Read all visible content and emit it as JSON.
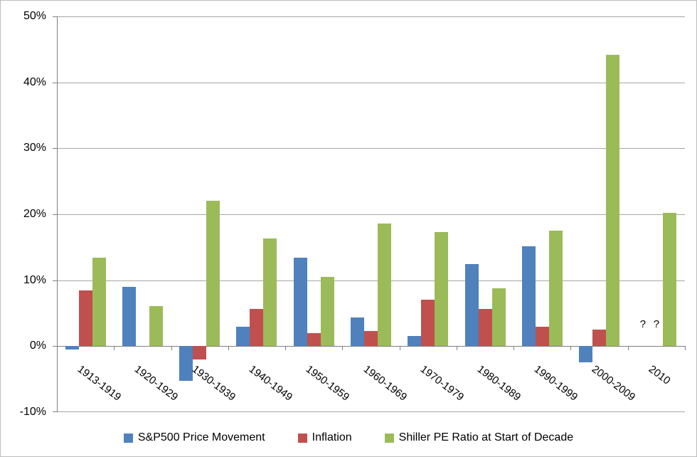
{
  "chart_data": {
    "type": "bar",
    "title": "",
    "xlabel": "",
    "ylabel": "",
    "categories": [
      "1913-1919",
      "1920-1929",
      "1930-1939",
      "1940-1949",
      "1950-1959",
      "1960-1969",
      "1970-1979",
      "1980-1989",
      "1990-1999",
      "2000-2009",
      "2010"
    ],
    "series": [
      {
        "name": "S&P500 Price Movement",
        "color": "#4F81BD",
        "values": [
          -0.5,
          9.0,
          -5.3,
          3.0,
          13.4,
          4.4,
          1.6,
          12.4,
          15.1,
          -2.4,
          "?"
        ]
      },
      {
        "name": "Inflation",
        "color": "#C0504D",
        "values": [
          8.5,
          0,
          -2.0,
          5.6,
          2.0,
          2.3,
          7.0,
          5.6,
          2.9,
          2.5,
          "?"
        ]
      },
      {
        "name": "Shiller PE Ratio at Start of Decade",
        "color": "#9BBB59",
        "values": [
          13.4,
          6.1,
          22.0,
          16.3,
          10.5,
          18.6,
          17.3,
          8.8,
          17.5,
          44.2,
          20.2
        ]
      }
    ],
    "unknown_marker": "?",
    "y_ticks": [
      "50%",
      "40%",
      "30%",
      "20%",
      "10%",
      "0%",
      "-10%"
    ],
    "y_tick_values": [
      50,
      40,
      30,
      20,
      10,
      0,
      -10
    ],
    "ylim": [
      -10,
      50
    ],
    "grid": true,
    "legend_position": "bottom"
  },
  "colors": {
    "gridline": "#A6A6A6",
    "axis": "#808080",
    "border": "#BDBDBD",
    "text": "#000000"
  }
}
